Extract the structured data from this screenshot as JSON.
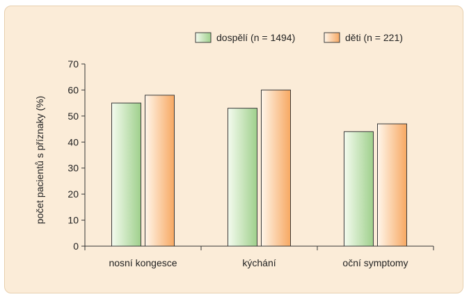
{
  "chart_data": {
    "type": "bar",
    "title": "",
    "xlabel": "",
    "ylabel": "počet pacientů s příznaky (%)",
    "ylim": [
      0,
      70
    ],
    "yticks": [
      0,
      10,
      20,
      30,
      40,
      50,
      60,
      70
    ],
    "categories": [
      "nosní kongesce",
      "kýchání",
      "oční symptomy"
    ],
    "series": [
      {
        "name": "dospělí (n = 1494)",
        "values": [
          55,
          53,
          44
        ],
        "colors": {
          "light": "#f4fbef",
          "dark": "#9fd08c",
          "stroke": "#3a3a3a"
        }
      },
      {
        "name": "děti (n = 221)",
        "values": [
          58,
          60,
          47
        ],
        "colors": {
          "light": "#fff6ea",
          "dark": "#f7a862",
          "stroke": "#3a3a3a"
        }
      }
    ],
    "legend_position": "top-right",
    "grid": false
  }
}
